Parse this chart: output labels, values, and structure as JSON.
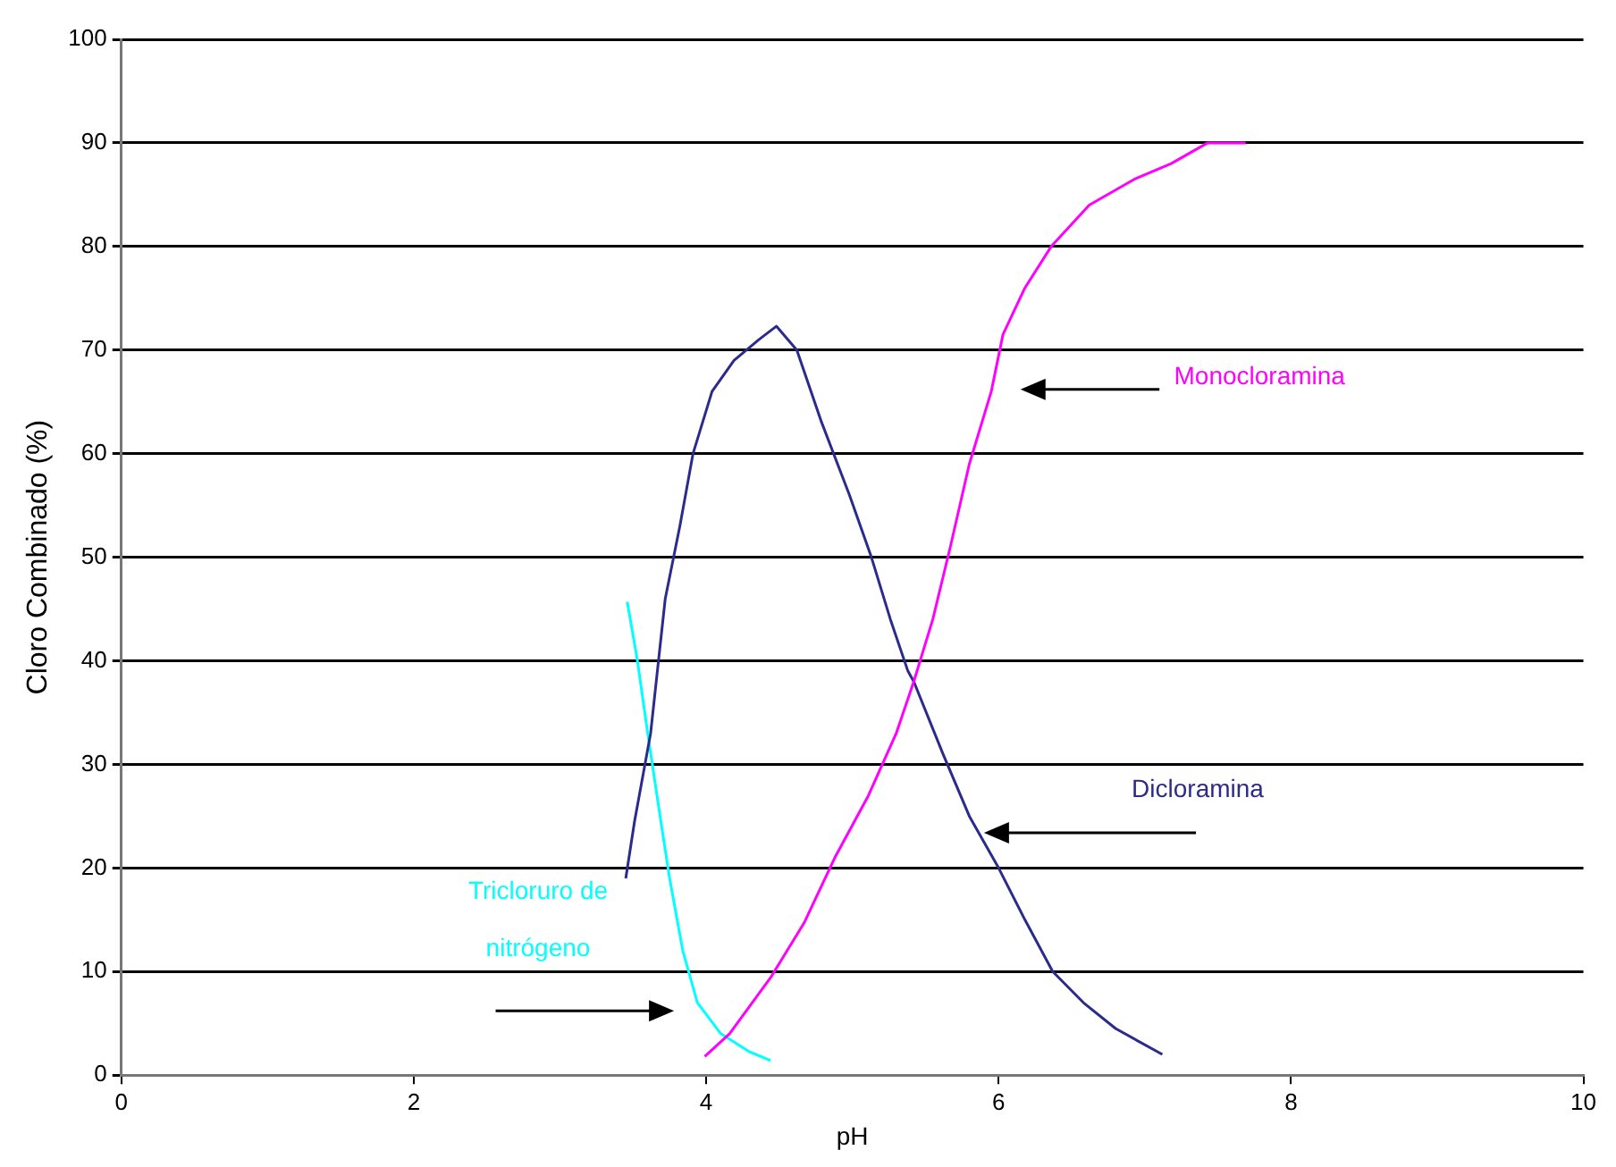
{
  "chart_data": {
    "type": "line",
    "xlabel": "pH",
    "ylabel": "Cloro Combinado (%)",
    "xlim": [
      0,
      10
    ],
    "xticks": [
      0,
      2,
      4,
      6,
      8,
      10
    ],
    "ylim": [
      0,
      100
    ],
    "yticks": [
      0,
      10,
      20,
      30,
      40,
      50,
      60,
      70,
      80,
      90,
      100
    ],
    "grid": "y",
    "legend": false,
    "marker": "none",
    "line_style": "solid",
    "series": [
      {
        "name": "Monocloramina",
        "color": "#ff00ff",
        "x": [
          3.99,
          4.16,
          4.44,
          4.67,
          4.88,
          5.11,
          5.3,
          5.42,
          5.55,
          5.67,
          5.8,
          5.95,
          6.03,
          6.18,
          6.36,
          6.62,
          6.93,
          7.18,
          7.43,
          7.69
        ],
        "values": [
          1.8,
          4,
          9.4,
          14.7,
          21,
          27,
          33,
          38,
          44,
          51,
          59,
          66,
          71.5,
          76,
          80,
          84,
          86.5,
          88,
          90,
          90
        ]
      },
      {
        "name": "Dicloramina",
        "color": "#2b2b8c",
        "x": [
          3.45,
          3.51,
          3.62,
          3.72,
          3.82,
          3.91,
          4.04,
          4.19,
          4.36,
          4.48,
          4.62,
          4.79,
          4.98,
          5.13,
          5.26,
          5.38,
          5.42,
          5.62,
          5.8,
          6.0,
          6.18,
          6.37,
          6.58,
          6.8,
          7.12
        ],
        "values": [
          19,
          24.5,
          33,
          46,
          53,
          60,
          66,
          69,
          71,
          72.3,
          70,
          63,
          56,
          50,
          44,
          39,
          38,
          31,
          25,
          20,
          15,
          10,
          7,
          4.5,
          2
        ]
      },
      {
        "name": "Tricloruro de nitrógeno",
        "color": "#00ffff",
        "x": [
          3.46,
          3.53,
          3.6,
          3.69,
          3.75,
          3.84,
          3.94,
          4.1,
          4.29,
          4.44
        ],
        "values": [
          45.7,
          40,
          33,
          24.5,
          19,
          12,
          7,
          4,
          2.3,
          1.4
        ]
      }
    ]
  }
}
